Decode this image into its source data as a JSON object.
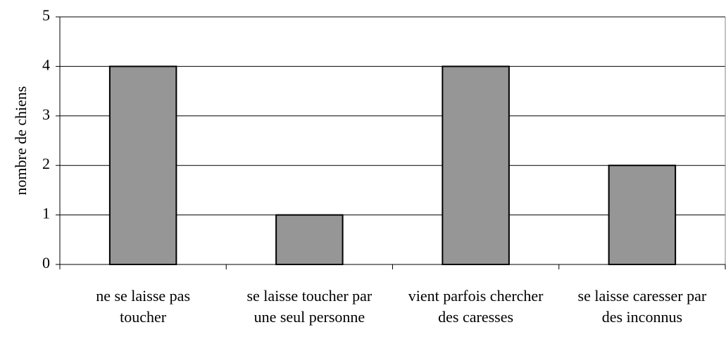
{
  "chart_data": {
    "type": "bar",
    "y_label": "nombre de chiens",
    "categories": [
      "ne se laisse pas toucher",
      "se laisse toucher par une seul personne",
      "vient parfois chercher des caresses",
      "se laisse caresser par des inconnus"
    ],
    "values": [
      4,
      1,
      4,
      2
    ],
    "color": "#969696",
    "ylim": [
      0,
      5
    ],
    "yticks": [
      0,
      1,
      2,
      3,
      4,
      5
    ],
    "grid": true
  }
}
